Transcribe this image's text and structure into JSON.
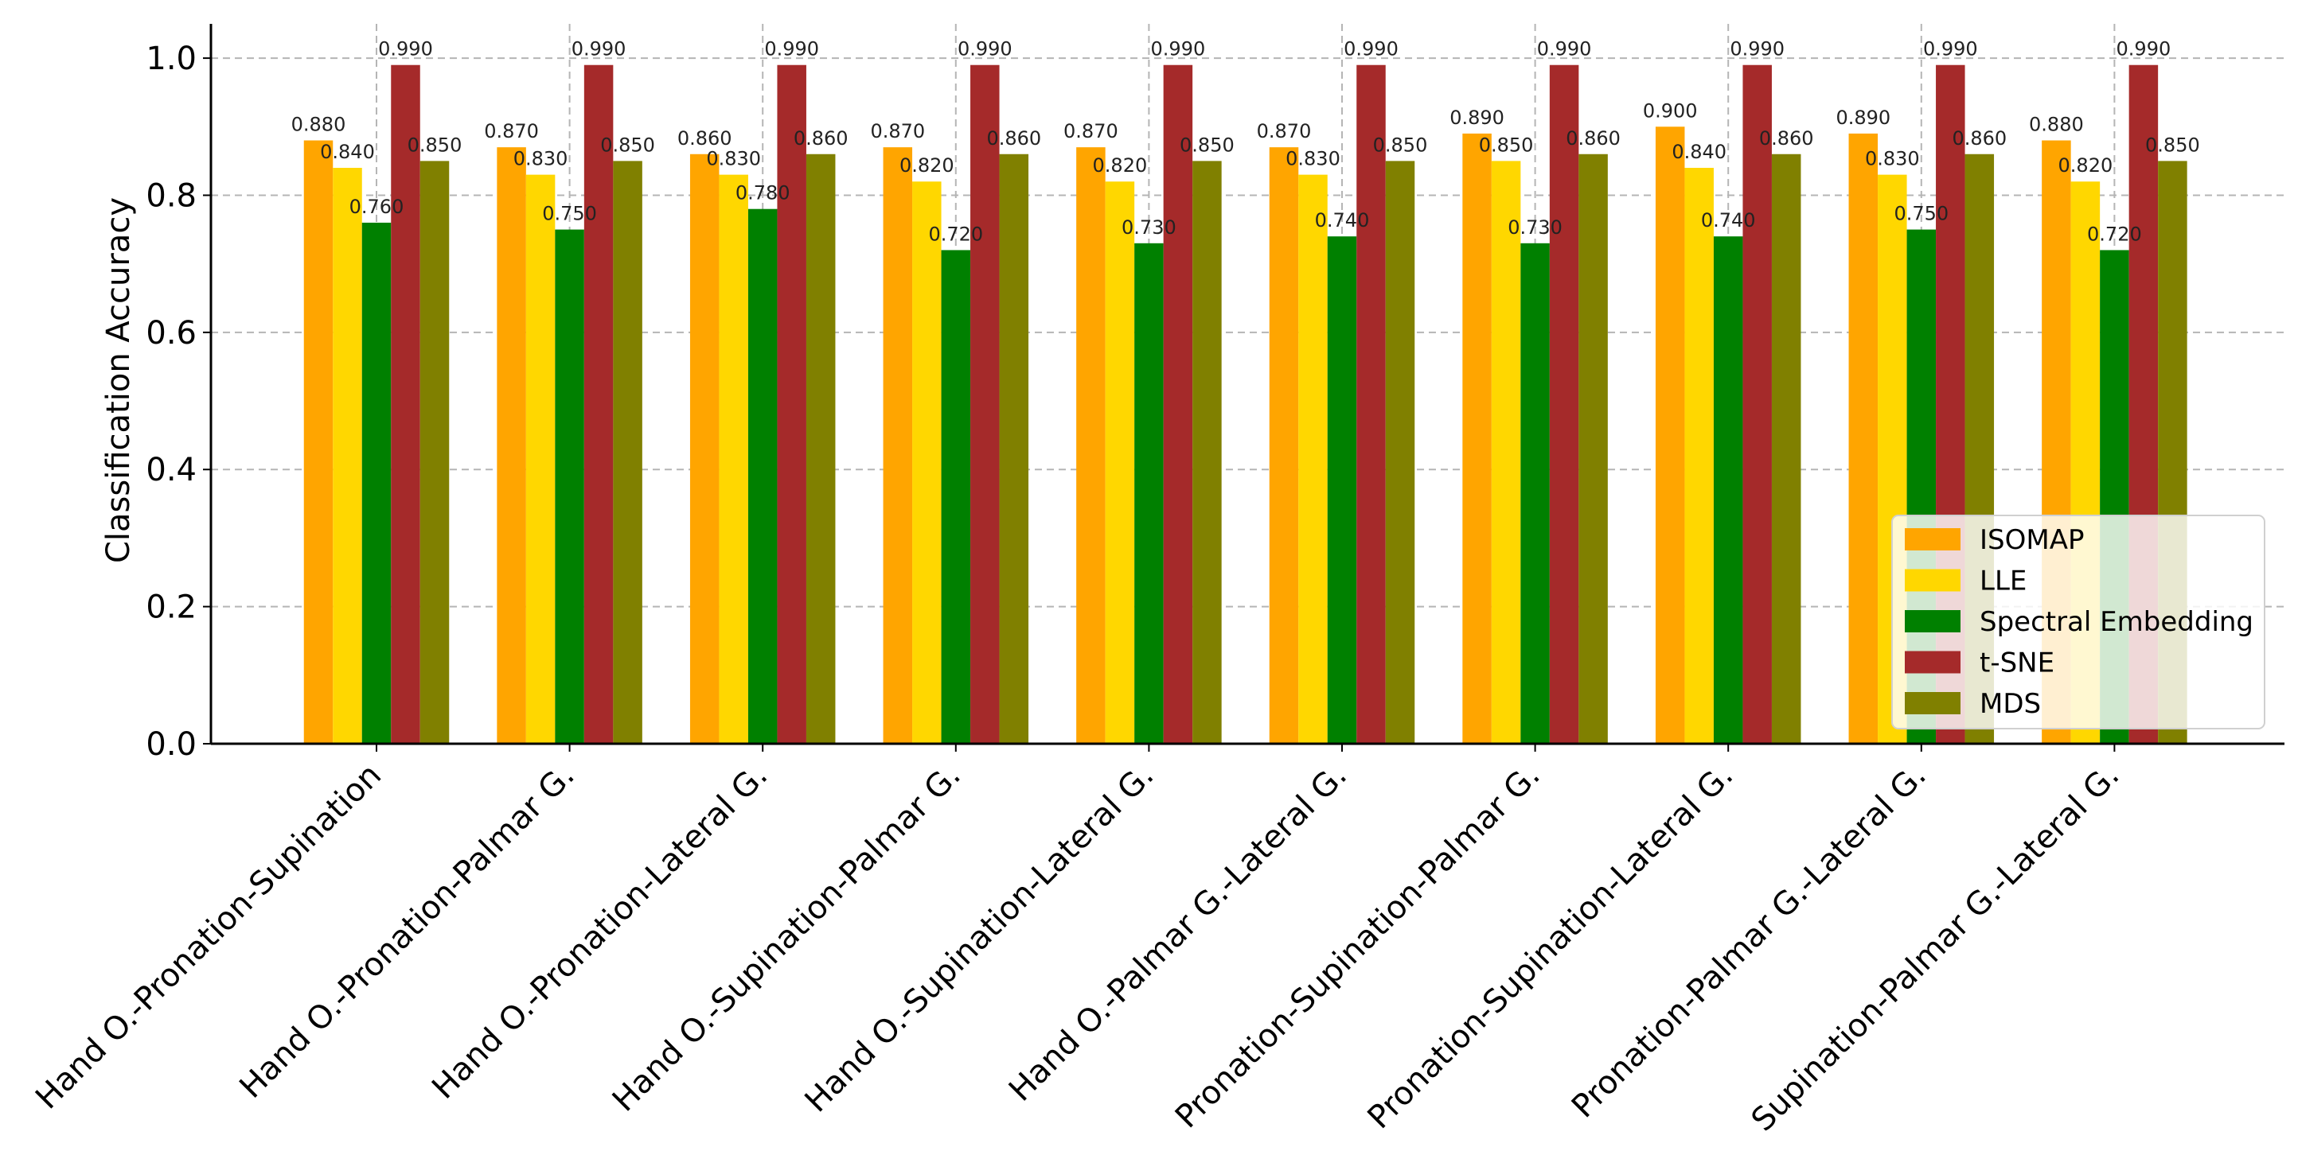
{
  "chart_data": {
    "type": "bar",
    "title": "",
    "xlabel": "",
    "ylabel": "Classification Accuracy",
    "ylim": [
      0,
      1.05
    ],
    "yticks": [
      "0.0",
      "0.2",
      "0.4",
      "0.6",
      "0.8",
      "1.0"
    ],
    "ytick_values": [
      0,
      0.2,
      0.4,
      0.6,
      0.8,
      1.0
    ],
    "grid": true,
    "legend_position": "lower-right",
    "categories": [
      "Hand O.-Pronation-Supination",
      "Hand O.-Pronation-Palmar G.",
      "Hand O.-Pronation-Lateral G.",
      "Hand O.-Supination-Palmar G.",
      "Hand O.-Supination-Lateral G.",
      "Hand O.-Palmar G.-Lateral G.",
      "Pronation-Supination-Palmar G.",
      "Pronation-Supination-Lateral G.",
      "Pronation-Palmar G.-Lateral G.",
      "Supination-Palmar G.-Lateral G."
    ],
    "series": [
      {
        "name": "ISOMAP",
        "color": "#FFA500",
        "values": [
          0.88,
          0.87,
          0.86,
          0.87,
          0.87,
          0.87,
          0.89,
          0.9,
          0.89,
          0.88
        ],
        "labels": [
          "0.880",
          "0.870",
          "0.860",
          "0.870",
          "0.870",
          "0.870",
          "0.890",
          "0.900",
          "0.890",
          "0.880"
        ]
      },
      {
        "name": "LLE",
        "color": "#FFD700",
        "values": [
          0.84,
          0.83,
          0.83,
          0.82,
          0.82,
          0.83,
          0.85,
          0.84,
          0.83,
          0.82
        ],
        "labels": [
          "0.840",
          "0.830",
          "0.830",
          "0.820",
          "0.820",
          "0.830",
          "0.850",
          "0.840",
          "0.830",
          "0.820"
        ]
      },
      {
        "name": "Spectral Embedding",
        "color": "#008000",
        "values": [
          0.76,
          0.75,
          0.78,
          0.72,
          0.73,
          0.74,
          0.73,
          0.74,
          0.75,
          0.72
        ],
        "labels": [
          "0.760",
          "0.750",
          "0.780",
          "0.720",
          "0.730",
          "0.740",
          "0.730",
          "0.740",
          "0.750",
          "0.720"
        ]
      },
      {
        "name": "t-SNE",
        "color": "#A52A2A",
        "values": [
          0.99,
          0.99,
          0.99,
          0.99,
          0.99,
          0.99,
          0.99,
          0.99,
          0.99,
          0.99
        ],
        "labels": [
          "0.990",
          "0.990",
          "0.990",
          "0.990",
          "0.990",
          "0.990",
          "0.990",
          "0.990",
          "0.990",
          "0.990"
        ]
      },
      {
        "name": "MDS",
        "color": "#808000",
        "values": [
          0.85,
          0.85,
          0.86,
          0.86,
          0.85,
          0.85,
          0.86,
          0.86,
          0.86,
          0.85
        ],
        "labels": [
          "0.850",
          "0.850",
          "0.860",
          "0.860",
          "0.850",
          "0.850",
          "0.860",
          "0.860",
          "0.860",
          "0.850"
        ]
      }
    ]
  }
}
